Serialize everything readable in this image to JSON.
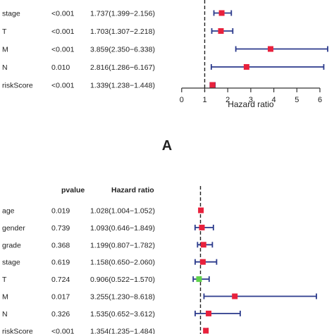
{
  "chart_data": [
    {
      "type": "forest",
      "panel_label": "A",
      "headers": {
        "pvalue": "",
        "ratio": ""
      },
      "xlabel": "Hazard ratio",
      "reference_line": 1,
      "xlim": [
        0,
        6.2
      ],
      "xticks": [
        "0",
        "1",
        "2",
        "3",
        "4",
        "5",
        "6"
      ],
      "rows": [
        {
          "label": "stage",
          "pvalue": "<0.001",
          "ratio_text": "1.737(1.399−2.156)",
          "hr": 1.737,
          "lo": 1.399,
          "hi": 2.156,
          "color": "#e8213c"
        },
        {
          "label": "T",
          "pvalue": "<0.001",
          "ratio_text": "1.703(1.307−2.218)",
          "hr": 1.703,
          "lo": 1.307,
          "hi": 2.218,
          "color": "#e8213c"
        },
        {
          "label": "M",
          "pvalue": "<0.001",
          "ratio_text": "3.859(2.350−6.338)",
          "hr": 3.859,
          "lo": 2.35,
          "hi": 6.338,
          "color": "#e8213c"
        },
        {
          "label": "N",
          "pvalue": "0.010",
          "ratio_text": "2.816(1.286−6.167)",
          "hr": 2.816,
          "lo": 1.286,
          "hi": 6.167,
          "color": "#e8213c"
        },
        {
          "label": "riskScore",
          "pvalue": "<0.001",
          "ratio_text": "1.339(1.238−1.448)",
          "hr": 1.339,
          "lo": 1.238,
          "hi": 1.448,
          "color": "#e8213c"
        }
      ]
    },
    {
      "type": "forest",
      "panel_label": "",
      "headers": {
        "pvalue": "pvalue",
        "ratio": "Hazard ratio"
      },
      "xlabel": "",
      "reference_line": 1,
      "xlim": [
        0,
        8.8
      ],
      "xticks": [],
      "rows": [
        {
          "label": "age",
          "pvalue": "0.019",
          "ratio_text": "1.028(1.004−1.052)",
          "hr": 1.028,
          "lo": 1.004,
          "hi": 1.052,
          "color": "#e8213c"
        },
        {
          "label": "gender",
          "pvalue": "0.739",
          "ratio_text": "1.093(0.646−1.849)",
          "hr": 1.093,
          "lo": 0.646,
          "hi": 1.849,
          "color": "#e8213c"
        },
        {
          "label": "grade",
          "pvalue": "0.368",
          "ratio_text": "1.199(0.807−1.782)",
          "hr": 1.199,
          "lo": 0.807,
          "hi": 1.782,
          "color": "#e8213c"
        },
        {
          "label": "stage",
          "pvalue": "0.619",
          "ratio_text": "1.158(0.650−2.060)",
          "hr": 1.158,
          "lo": 0.65,
          "hi": 2.06,
          "color": "#e8213c"
        },
        {
          "label": "T",
          "pvalue": "0.724",
          "ratio_text": "0.906(0.522−1.570)",
          "hr": 0.906,
          "lo": 0.522,
          "hi": 1.57,
          "color": "#5ed14a"
        },
        {
          "label": "M",
          "pvalue": "0.017",
          "ratio_text": "3.255(1.230−8.618)",
          "hr": 3.255,
          "lo": 1.23,
          "hi": 8.618,
          "color": "#e8213c"
        },
        {
          "label": "N",
          "pvalue": "0.326",
          "ratio_text": "1.535(0.652−3.612)",
          "hr": 1.535,
          "lo": 0.652,
          "hi": 3.612,
          "color": "#e8213c"
        },
        {
          "label": "riskScore",
          "pvalue": "<0.001",
          "ratio_text": "1.354(1.235−1.484)",
          "hr": 1.354,
          "lo": 1.235,
          "hi": 1.484,
          "color": "#e8213c"
        }
      ]
    }
  ],
  "colors": {
    "ci_line": "#2b3a8c",
    "ref_line": "#222222",
    "axis": "#333333"
  }
}
